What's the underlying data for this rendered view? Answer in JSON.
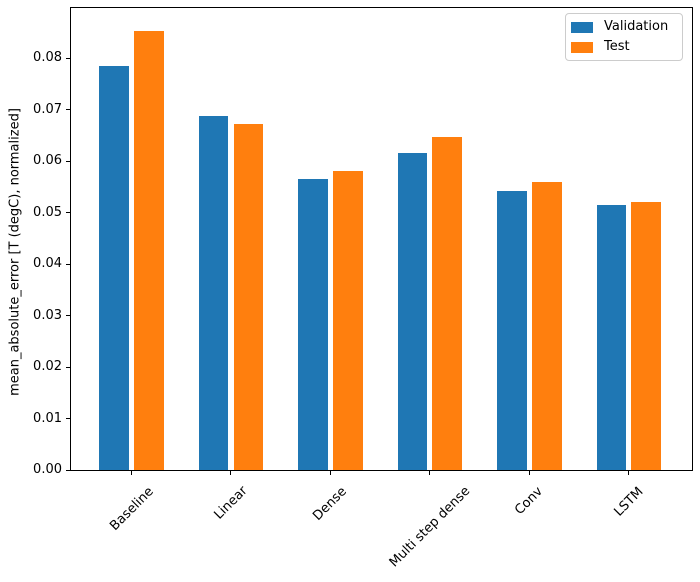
{
  "chart_data": {
    "type": "bar",
    "title": "",
    "xlabel": "",
    "ylabel": "mean_absolute_error [T (degC), normalized]",
    "categories": [
      "Baseline",
      "Linear",
      "Dense",
      "Multi step dense",
      "Conv",
      "LSTM"
    ],
    "series": [
      {
        "name": "Validation",
        "color": "#1f77b4",
        "values": [
          0.0785,
          0.0689,
          0.0566,
          0.0616,
          0.0543,
          0.0516
        ]
      },
      {
        "name": "Test",
        "color": "#ff7f0e",
        "values": [
          0.0853,
          0.0673,
          0.0581,
          0.0648,
          0.056,
          0.0522
        ]
      }
    ],
    "ylim": [
      0,
      0.09
    ],
    "yticks": [
      {
        "value": 0.0,
        "label": "0.00"
      },
      {
        "value": 0.01,
        "label": "0.01"
      },
      {
        "value": 0.02,
        "label": "0.02"
      },
      {
        "value": 0.03,
        "label": "0.03"
      },
      {
        "value": 0.04,
        "label": "0.04"
      },
      {
        "value": 0.05,
        "label": "0.05"
      },
      {
        "value": 0.06,
        "label": "0.06"
      },
      {
        "value": 0.07,
        "label": "0.07"
      },
      {
        "value": 0.08,
        "label": "0.08"
      }
    ],
    "x_tick_rotation": 45,
    "grid": false,
    "bar_width_frac": 0.3,
    "bar_offset_frac": 0.175,
    "legend": {
      "position": "upper right",
      "entries": [
        "Validation",
        "Test"
      ]
    },
    "colors": {
      "axis": "#000000",
      "legend_border": "#cccccc",
      "background": "#ffffff"
    }
  }
}
